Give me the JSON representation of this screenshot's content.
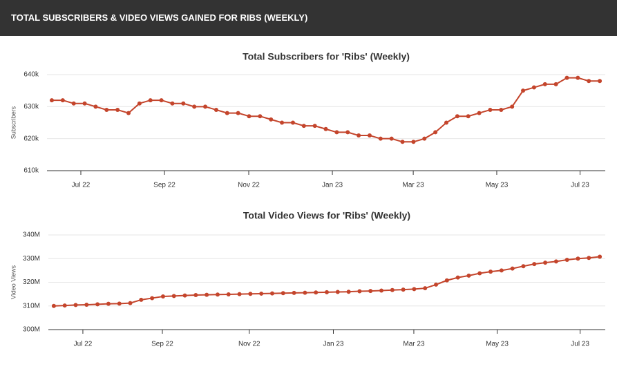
{
  "header": {
    "title": "TOTAL SUBSCRIBERS & VIDEO VIEWS GAINED FOR RIBS (WEEKLY)"
  },
  "chart_data": [
    {
      "type": "line",
      "title": "Total Subscribers for 'Ribs' (Weekly)",
      "y_label": "Subscribers",
      "series": [
        {
          "name": "Subscribers",
          "color": "#c4452c",
          "values": [
            632,
            632,
            631,
            631,
            630,
            629,
            629,
            628,
            631,
            632,
            632,
            631,
            631,
            630,
            630,
            629,
            628,
            628,
            627,
            627,
            626,
            625,
            625,
            624,
            624,
            623,
            622,
            622,
            621,
            621,
            620,
            620,
            619,
            619,
            620,
            622,
            625,
            627,
            627,
            628,
            629,
            629,
            630,
            635,
            636,
            637,
            637,
            639,
            639,
            638,
            638
          ]
        }
      ],
      "xlim": [
        -0.44,
        50.5
      ],
      "xticks": [
        {
          "value": 2.65,
          "label": "Jul 22"
        },
        {
          "value": 10.28,
          "label": "Sep 22"
        },
        {
          "value": 17.97,
          "label": "Nov 22"
        },
        {
          "value": 25.6,
          "label": "Jan 23"
        },
        {
          "value": 32.98,
          "label": "Mar 23"
        },
        {
          "value": 40.6,
          "label": "May 23"
        },
        {
          "value": 48.2,
          "label": "Jul 23"
        }
      ],
      "ylim": [
        610,
        640
      ],
      "yticks": [
        {
          "value": 610,
          "label": "610k"
        },
        {
          "value": 620,
          "label": "620k"
        },
        {
          "value": 630,
          "label": "630k"
        },
        {
          "value": 640,
          "label": "640k"
        }
      ],
      "grid": true
    },
    {
      "type": "line",
      "title": "Total Video Views for 'Ribs' (Weekly)",
      "y_label": "Video Views",
      "series": [
        {
          "name": "Video Views",
          "color": "#c4452c",
          "values": [
            310,
            310.2,
            310.4,
            310.5,
            310.7,
            310.9,
            311,
            311.2,
            312.6,
            313.3,
            314,
            314.2,
            314.4,
            314.6,
            314.7,
            314.8,
            314.9,
            315,
            315.1,
            315.2,
            315.3,
            315.4,
            315.5,
            315.6,
            315.7,
            315.8,
            315.9,
            316,
            316.2,
            316.3,
            316.5,
            316.7,
            316.9,
            317.1,
            317.5,
            319,
            320.8,
            322,
            322.8,
            323.8,
            324.5,
            325,
            325.8,
            326.8,
            327.7,
            328.3,
            328.8,
            329.5,
            330,
            330.3,
            330.8
          ]
        }
      ],
      "xlim": [
        -0.5,
        50.5
      ],
      "xticks": [
        {
          "value": 2.66,
          "label": "Jul 22"
        },
        {
          "value": 9.94,
          "label": "Sep 22"
        },
        {
          "value": 17.9,
          "label": "Nov 22"
        },
        {
          "value": 25.6,
          "label": "Jan 23"
        },
        {
          "value": 32.97,
          "label": "Mar 23"
        },
        {
          "value": 40.6,
          "label": "May 23"
        },
        {
          "value": 48.2,
          "label": "Jul 23"
        }
      ],
      "ylim": [
        300,
        340
      ],
      "yticks": [
        {
          "value": 300,
          "label": "300M"
        },
        {
          "value": 310,
          "label": "310M"
        },
        {
          "value": 320,
          "label": "320M"
        },
        {
          "value": 330,
          "label": "330M"
        },
        {
          "value": 340,
          "label": "340M"
        }
      ],
      "grid": true
    }
  ]
}
